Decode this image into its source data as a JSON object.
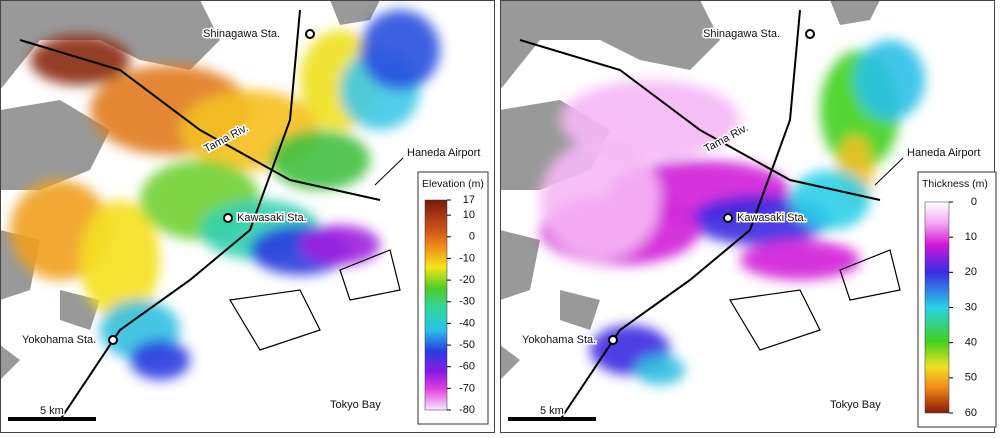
{
  "panels": [
    {
      "places": [
        "Shinagawa Sta.",
        "Tama Riv.",
        "Haneda Airport",
        "Kawasaki Sta.",
        "Yokohama Sta.",
        "Tokyo Bay",
        "5 km"
      ],
      "legend": {
        "title": "Elevation (m)",
        "ticks": [
          17,
          10,
          0,
          -10,
          -20,
          -30,
          -40,
          -50,
          -60,
          -70,
          -80
        ]
      }
    },
    {
      "places": [
        "Shinagawa Sta.",
        "Tama Riv.",
        "Haneda Airport",
        "Kawasaki Sta.",
        "Yokohama Sta.",
        "Tokyo Bay",
        "5 km"
      ],
      "legend": {
        "title": "Thickness (m)",
        "ticks": [
          0,
          10,
          20,
          30,
          40,
          50,
          60
        ]
      }
    }
  ]
}
